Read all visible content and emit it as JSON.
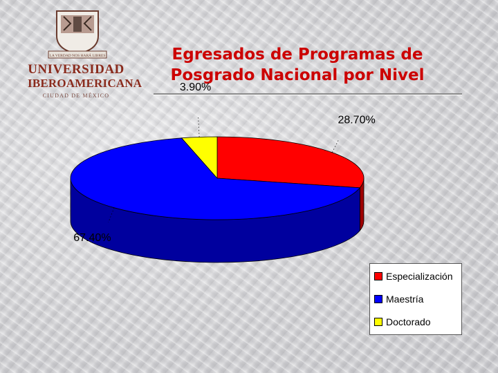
{
  "logo": {
    "motto": "LA VERDAD NOS HARÁ LIBRES",
    "line1": "UNIVERSIDAD",
    "line2": "IBEROAMERICANA",
    "line3": "CIUDAD DE MÉXICO"
  },
  "title": {
    "line1": "Egresados de Programas de",
    "line2": "Posgrado Nacional por Nivel"
  },
  "colors": {
    "title": "#cc0000",
    "especializacion": "#ff0000",
    "maestria": "#0000ff",
    "doctorado": "#ffff00"
  },
  "chart_data": {
    "type": "pie",
    "style": "3d",
    "title": "Egresados de Programas de Posgrado Nacional por Nivel",
    "legend_position": "bottom-right",
    "series": [
      {
        "name": "Especialización",
        "value": 28.7,
        "label": "28.70%",
        "color": "#ff0000"
      },
      {
        "name": "Maestría",
        "value": 67.4,
        "label": "67.40%",
        "color": "#0000ff"
      },
      {
        "name": "Doctorado",
        "value": 3.9,
        "label": "3.90%",
        "color": "#ffff00"
      }
    ]
  }
}
